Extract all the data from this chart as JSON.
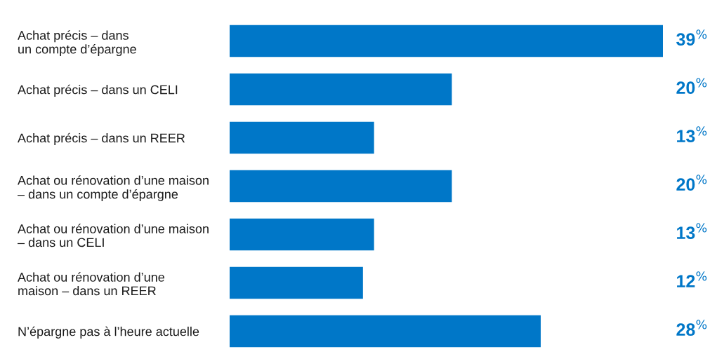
{
  "chart_data": {
    "type": "bar",
    "orientation": "horizontal",
    "categories": [
      "Achat précis – dans\nun compte d’épargne",
      "Achat précis – dans un CELI",
      "Achat précis – dans un REER",
      "Achat ou rénovation d’une maison\n– dans un compte d’épargne",
      "Achat ou rénovation d’une maison\n– dans un CELI",
      "Achat ou rénovation d’une\nmaison – dans un REER",
      "N’épargne pas à l’heure actuelle"
    ],
    "values": [
      39,
      20,
      13,
      20,
      13,
      12,
      28
    ],
    "value_labels": [
      "39$^{%}$",
      "20$^{%}$",
      "13$^{%}$",
      "20$^{%}$",
      "13$^{%}$",
      "12$^{%}$",
      "28$^{%}$"
    ],
    "color": "#0077c8",
    "grid": false,
    "legend": false
  }
}
